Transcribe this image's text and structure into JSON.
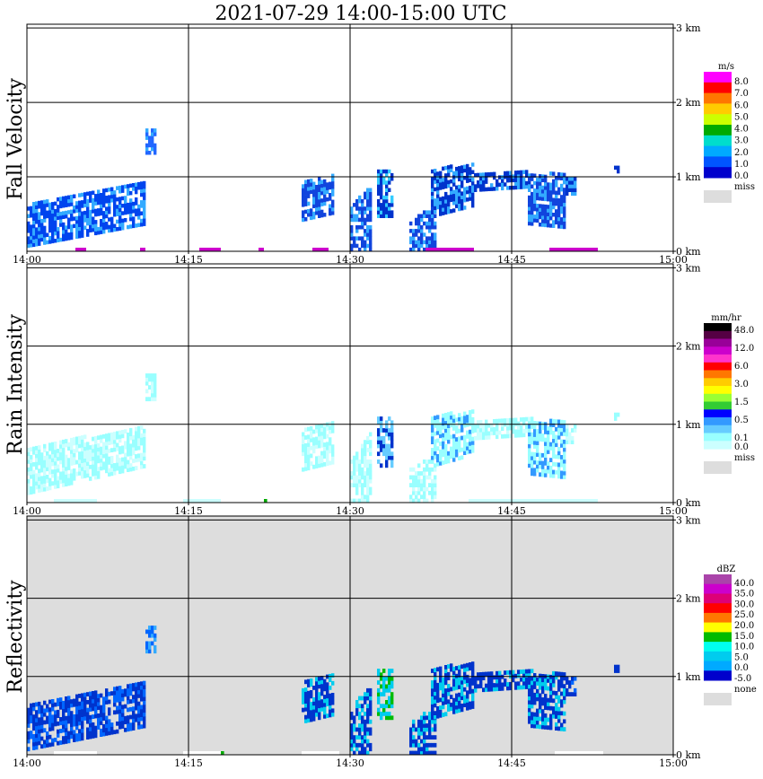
{
  "title": "2021-07-29   14:00-15:00 UTC",
  "chart_data": [
    {
      "type": "heatmap",
      "ylabel": "Fall Velocity",
      "x_ticks": [
        "14:00",
        "14:15",
        "14:30",
        "14:45",
        "15:00"
      ],
      "xlim_minutes": [
        0,
        60
      ],
      "y_ticks": [
        "0 km",
        "1 km",
        "2 km",
        "3 km"
      ],
      "ylim_km": [
        0,
        3.05
      ],
      "grid": true,
      "background": "#ffffff",
      "colorbar": {
        "unit": "m/s",
        "labels": [
          "8.0",
          "7.0",
          "6.0",
          "5.0",
          "4.0",
          "3.0",
          "2.0",
          "1.0",
          "0.0"
        ],
        "colors": [
          "#ff00ff",
          "#ff0000",
          "#ff7700",
          "#ffcc00",
          "#ccff00",
          "#00aa00",
          "#00ddcc",
          "#00aaff",
          "#0055ff",
          "#0000cc"
        ],
        "miss_label": "miss",
        "miss_color": "#dddddd"
      },
      "echoes": [
        {
          "t0": 0.0,
          "t1": 11.0,
          "b0": 0.35,
          "b1": 0.95,
          "t0b": 0.05,
          "t1b": 0.6,
          "color": "#0044ee",
          "color2": "#33aaff"
        },
        {
          "t0": 11.0,
          "t1": 12.0,
          "b0": 1.3,
          "b1": 1.65,
          "t0b": 1.3,
          "t1b": 1.65,
          "color": "#2266ff",
          "color2": "#33aaff"
        },
        {
          "t0": 25.5,
          "t1": 28.5,
          "b0": 0.5,
          "b1": 1.05,
          "t0b": 0.4,
          "t1b": 0.9,
          "color": "#1144dd",
          "color2": "#33aaff"
        },
        {
          "t0": 30.0,
          "t1": 32.0,
          "b0": 0.0,
          "b1": 0.9,
          "t0b": 0.0,
          "t1b": 0.6,
          "color": "#1144dd",
          "color2": "#33aaff"
        },
        {
          "t0": 32.5,
          "t1": 34.0,
          "b0": 0.45,
          "b1": 1.1,
          "t0b": 0.45,
          "t1b": 1.1,
          "color": "#0033cc",
          "color2": "#33ccff"
        },
        {
          "t0": 35.5,
          "t1": 38.0,
          "b0": 0.0,
          "b1": 0.6,
          "t0b": 0.0,
          "t1b": 0.4,
          "color": "#1144dd",
          "color2": "#33aaff"
        },
        {
          "t0": 37.5,
          "t1": 41.5,
          "b0": 0.6,
          "b1": 1.15,
          "t0b": 0.45,
          "t1b": 1.1,
          "color": "#0033cc",
          "color2": "#33aaff"
        },
        {
          "t0": 41.5,
          "t1": 47.0,
          "b0": 0.85,
          "b1": 1.1,
          "t0b": 0.8,
          "t1b": 1.05,
          "color": "#0033cc",
          "color2": "#33aaff"
        },
        {
          "t0": 46.5,
          "t1": 50.0,
          "b0": 0.3,
          "b1": 1.05,
          "t0b": 0.35,
          "t1b": 1.0,
          "color": "#1144dd",
          "color2": "#33aaff"
        },
        {
          "t0": 50.0,
          "t1": 51.0,
          "b0": 0.75,
          "b1": 1.0,
          "t0b": 0.75,
          "t1b": 1.0,
          "color": "#0033cc",
          "color2": "#33aaff"
        },
        {
          "t0": 54.5,
          "t1": 55.0,
          "b0": 1.05,
          "b1": 1.15,
          "t0b": 1.05,
          "t1b": 1.15,
          "color": "#0033cc",
          "color2": "#0033cc"
        }
      ],
      "surface": [
        {
          "t0": 4.5,
          "t1": 5.5,
          "color": "#cc00cc"
        },
        {
          "t0": 10.5,
          "t1": 11.0,
          "color": "#cc00cc"
        },
        {
          "t0": 16.0,
          "t1": 18.0,
          "color": "#cc00cc"
        },
        {
          "t0": 21.5,
          "t1": 22.0,
          "color": "#cc00cc"
        },
        {
          "t0": 26.5,
          "t1": 28.0,
          "color": "#cc00cc"
        },
        {
          "t0": 37.0,
          "t1": 41.5,
          "color": "#cc00cc"
        },
        {
          "t0": 48.5,
          "t1": 53.0,
          "color": "#cc00cc"
        }
      ]
    },
    {
      "type": "heatmap",
      "ylabel": "Rain Intensity",
      "x_ticks": [
        "14:00",
        "14:15",
        "14:30",
        "14:45",
        "15:00"
      ],
      "xlim_minutes": [
        0,
        60
      ],
      "y_ticks": [
        "0 km",
        "1 km",
        "2 km",
        "3 km"
      ],
      "ylim_km": [
        0,
        3.05
      ],
      "grid": true,
      "background": "#ffffff",
      "colorbar": {
        "unit": "mm/hr",
        "labels": [
          "48.0",
          "",
          "12.0",
          "",
          "6.0",
          "",
          "3.0",
          "",
          "1.5",
          "",
          "0.5",
          "",
          "0.1",
          "0.0"
        ],
        "colors": [
          "#000000",
          "#550044",
          "#990099",
          "#cc00cc",
          "#ff33cc",
          "#ff0000",
          "#ff7700",
          "#ffcc00",
          "#ffff00",
          "#99ff33",
          "#33cc33",
          "#0000ff",
          "#3399ff",
          "#66ccff",
          "#99ffff",
          "#ccffff"
        ],
        "miss_label": "miss",
        "miss_color": "#dddddd"
      },
      "echoes": [
        {
          "t0": 0.0,
          "t1": 11.0,
          "b0": 0.45,
          "b1": 0.95,
          "t0b": 0.1,
          "t1b": 0.7,
          "color": "#99ffff",
          "color2": "#ccffff"
        },
        {
          "t0": 11.0,
          "t1": 12.0,
          "b0": 1.3,
          "b1": 1.65,
          "t0b": 1.3,
          "t1b": 1.65,
          "color": "#99ffff",
          "color2": "#ccffff"
        },
        {
          "t0": 25.5,
          "t1": 28.5,
          "b0": 0.5,
          "b1": 1.05,
          "t0b": 0.4,
          "t1b": 0.9,
          "color": "#99ffff",
          "color2": "#ccffff"
        },
        {
          "t0": 30.0,
          "t1": 32.0,
          "b0": 0.0,
          "b1": 0.9,
          "t0b": 0.0,
          "t1b": 0.6,
          "color": "#99ffff",
          "color2": "#ccffff"
        },
        {
          "t0": 32.5,
          "t1": 34.0,
          "b0": 0.45,
          "b1": 1.1,
          "t0b": 0.45,
          "t1b": 1.1,
          "color": "#66ccff",
          "color2": "#0033cc"
        },
        {
          "t0": 35.5,
          "t1": 38.0,
          "b0": 0.0,
          "b1": 0.6,
          "t0b": 0.0,
          "t1b": 0.4,
          "color": "#99ffff",
          "color2": "#ccffff"
        },
        {
          "t0": 37.5,
          "t1": 41.5,
          "b0": 0.6,
          "b1": 1.15,
          "t0b": 0.45,
          "t1b": 1.1,
          "color": "#99ffff",
          "color2": "#3399ff"
        },
        {
          "t0": 41.5,
          "t1": 47.0,
          "b0": 0.85,
          "b1": 1.1,
          "t0b": 0.8,
          "t1b": 1.05,
          "color": "#99ffff",
          "color2": "#ccffff"
        },
        {
          "t0": 46.5,
          "t1": 50.0,
          "b0": 0.3,
          "b1": 1.05,
          "t0b": 0.35,
          "t1b": 1.0,
          "color": "#99ffff",
          "color2": "#3399ff"
        },
        {
          "t0": 50.0,
          "t1": 51.0,
          "b0": 0.75,
          "b1": 1.0,
          "t0b": 0.75,
          "t1b": 1.0,
          "color": "#99ffff",
          "color2": "#ccffff"
        },
        {
          "t0": 54.5,
          "t1": 55.0,
          "b0": 1.05,
          "b1": 1.15,
          "t0b": 1.05,
          "t1b": 1.15,
          "color": "#99ffff",
          "color2": "#99ffff"
        }
      ],
      "surface": [
        {
          "t0": 2.5,
          "t1": 6.5,
          "color": "#ccffff"
        },
        {
          "t0": 14.5,
          "t1": 18.0,
          "color": "#ccffff"
        },
        {
          "t0": 22.0,
          "t1": 22.3,
          "color": "#00aa00"
        },
        {
          "t0": 41.0,
          "t1": 53.0,
          "color": "#ccffff"
        }
      ]
    },
    {
      "type": "heatmap",
      "ylabel": "Reflectivity",
      "x_ticks": [
        "14:00",
        "14:15",
        "14:30",
        "14:45",
        "15:00"
      ],
      "xlim_minutes": [
        0,
        60
      ],
      "y_ticks": [
        "0 km",
        "1 km",
        "2 km",
        "3 km"
      ],
      "ylim_km": [
        0,
        3.05
      ],
      "grid": true,
      "background": "#dddddd",
      "colorbar": {
        "unit": "dBZ",
        "labels": [
          "40.0",
          "35.0",
          "30.0",
          "25.0",
          "20.0",
          "15.0",
          "10.0",
          "5.0",
          "0.0",
          "-5.0"
        ],
        "colors": [
          "#aa44aa",
          "#cc00cc",
          "#dd0077",
          "#ff0000",
          "#ff7700",
          "#ffff00",
          "#00bb00",
          "#00ffee",
          "#00ccee",
          "#00aaff",
          "#0000cc"
        ],
        "miss_label": "none",
        "miss_color": "#dddddd"
      },
      "echoes": [
        {
          "t0": 0.0,
          "t1": 11.0,
          "b0": 0.35,
          "b1": 0.95,
          "t0b": 0.05,
          "t1b": 0.6,
          "color": "#0033cc",
          "color2": "#0066ff"
        },
        {
          "t0": 11.0,
          "t1": 12.0,
          "b0": 1.3,
          "b1": 1.65,
          "t0b": 1.3,
          "t1b": 1.65,
          "color": "#0066ff",
          "color2": "#33aaff"
        },
        {
          "t0": 25.5,
          "t1": 28.5,
          "b0": 0.5,
          "b1": 1.05,
          "t0b": 0.4,
          "t1b": 0.9,
          "color": "#0033cc",
          "color2": "#00ccee"
        },
        {
          "t0": 30.0,
          "t1": 32.0,
          "b0": 0.0,
          "b1": 0.9,
          "t0b": 0.0,
          "t1b": 0.6,
          "color": "#0033cc",
          "color2": "#00ccee"
        },
        {
          "t0": 32.5,
          "t1": 34.0,
          "b0": 0.45,
          "b1": 1.1,
          "t0b": 0.45,
          "t1b": 1.1,
          "color": "#00ccee",
          "color2": "#00bb00"
        },
        {
          "t0": 35.5,
          "t1": 38.0,
          "b0": 0.0,
          "b1": 0.6,
          "t0b": 0.0,
          "t1b": 0.4,
          "color": "#0033cc",
          "color2": "#00ccee"
        },
        {
          "t0": 37.5,
          "t1": 41.5,
          "b0": 0.6,
          "b1": 1.15,
          "t0b": 0.45,
          "t1b": 1.1,
          "color": "#0033cc",
          "color2": "#00ccee"
        },
        {
          "t0": 41.5,
          "t1": 47.0,
          "b0": 0.85,
          "b1": 1.1,
          "t0b": 0.8,
          "t1b": 1.05,
          "color": "#0033cc",
          "color2": "#00ccee"
        },
        {
          "t0": 46.5,
          "t1": 50.0,
          "b0": 0.3,
          "b1": 1.05,
          "t0b": 0.35,
          "t1b": 1.0,
          "color": "#0033cc",
          "color2": "#00ccee"
        },
        {
          "t0": 50.0,
          "t1": 51.0,
          "b0": 0.75,
          "b1": 1.0,
          "t0b": 0.75,
          "t1b": 1.0,
          "color": "#0033cc",
          "color2": "#0066ff"
        },
        {
          "t0": 54.5,
          "t1": 55.0,
          "b0": 1.05,
          "b1": 1.15,
          "t0b": 1.05,
          "t1b": 1.15,
          "color": "#0033cc",
          "color2": "#0033cc"
        }
      ],
      "surface": [
        {
          "t0": 2.5,
          "t1": 6.5,
          "color": "#ffffff"
        },
        {
          "t0": 14.5,
          "t1": 18.0,
          "color": "#ffffff"
        },
        {
          "t0": 18.0,
          "t1": 18.3,
          "color": "#00aa00"
        },
        {
          "t0": 25.5,
          "t1": 29.0,
          "color": "#ffffff"
        },
        {
          "t0": 49.0,
          "t1": 53.5,
          "color": "#ffffff"
        }
      ]
    }
  ]
}
